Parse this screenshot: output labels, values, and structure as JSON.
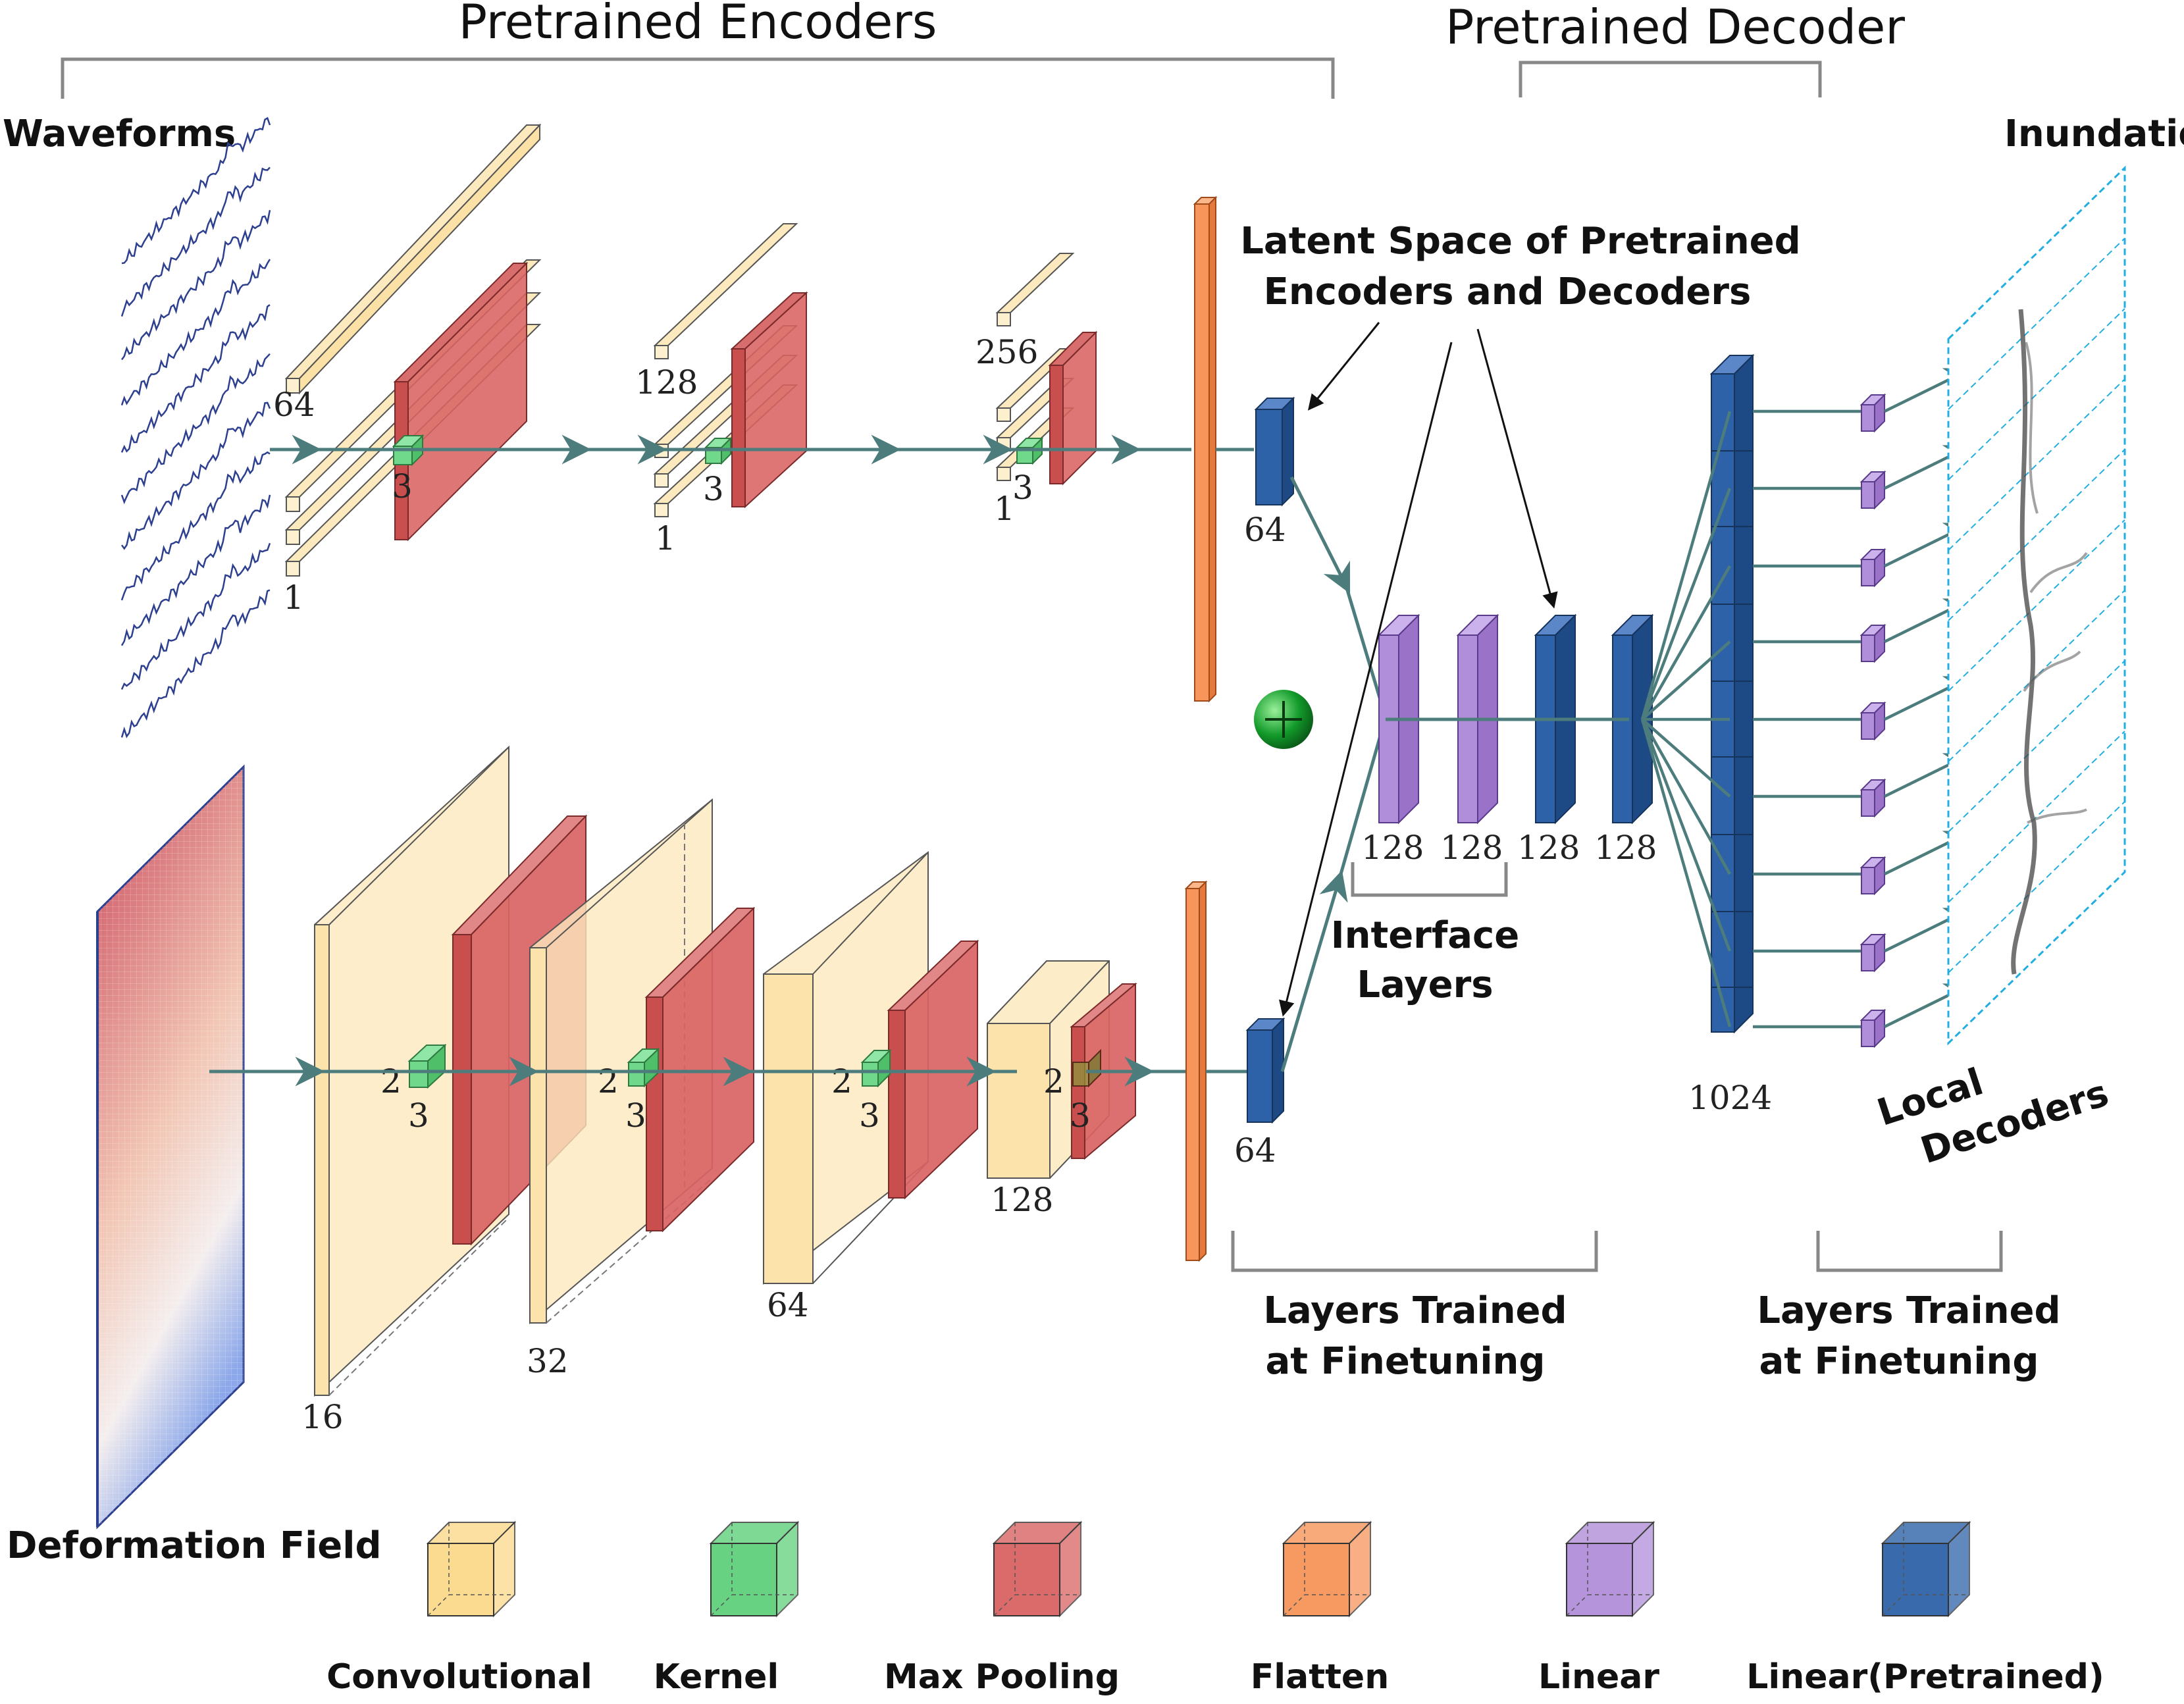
{
  "headings": {
    "encoders": "Pretrained Encoders",
    "decoder": "Pretrained Decoder",
    "waveforms": "Waveforms",
    "inundation": "Inundation",
    "deformation": "Deformation Field"
  },
  "annotations": {
    "latent_line1": "Latent Space of Pretrained",
    "latent_line2": "Encoders and Decoders",
    "interface_line1": "Interface",
    "interface_line2": "Layers",
    "finetune_line1": "Layers Trained",
    "finetune_line2": "at Finetuning",
    "local_line1": "Local",
    "local_line2": "Decoders"
  },
  "top_encoder": {
    "conv1_channels": "64",
    "conv1_depth": "1",
    "kernel1": "3",
    "conv2_channels": "128",
    "conv2_depth": "1",
    "kernel2": "3",
    "conv3_channels": "256",
    "conv3_depth": "1",
    "kernel3": "3",
    "latent": "64"
  },
  "bottom_encoder": {
    "conv1": "16",
    "stride1": "2",
    "kernel1": "3",
    "conv2": "32",
    "stride2": "2",
    "kernel2": "3",
    "conv3": "64",
    "stride3": "2",
    "kernel3": "3",
    "conv4": "128",
    "stride4": "2",
    "kernel4": "3",
    "latent": "64"
  },
  "interface": {
    "l1": "128",
    "l2": "128",
    "l3": "128",
    "l4": "128"
  },
  "decoder": {
    "width": "1024"
  },
  "legend": [
    {
      "label": "Convolutional",
      "color": "#fbd98a",
      "icon": "conv-cube-icon"
    },
    {
      "label": "Kernel",
      "color": "#5fd07a",
      "icon": "kernel-cube-icon"
    },
    {
      "label": "Max Pooling",
      "color": "#d96363",
      "icon": "maxpool-cube-icon"
    },
    {
      "label": "Flatten",
      "color": "#f7955a",
      "icon": "flatten-cube-icon"
    },
    {
      "label": "Linear",
      "color": "#b18ed9",
      "icon": "linear-cube-icon"
    },
    {
      "label": "Linear(Pretrained)",
      "color": "#2e62a8",
      "icon": "linear-pretrained-cube-icon"
    }
  ]
}
